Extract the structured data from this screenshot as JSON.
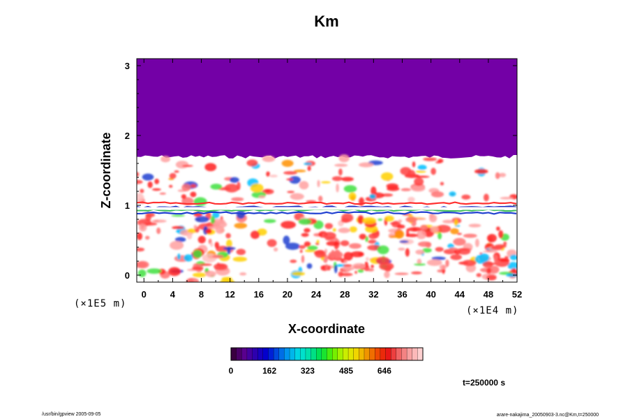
{
  "chart_data": {
    "type": "heatmap",
    "title": "Km",
    "xlabel": "X-coordinate",
    "ylabel": "Z-coordinate",
    "x_unit": "(×1E4 m)",
    "y_unit": "(×1E5 m)",
    "xlim": [
      -1,
      52
    ],
    "ylim": [
      -0.1,
      3.1
    ],
    "x_ticks": [
      0,
      4,
      8,
      12,
      16,
      20,
      24,
      28,
      32,
      36,
      40,
      44,
      48,
      52
    ],
    "y_ticks": [
      0,
      1,
      2,
      3
    ],
    "colorbar": {
      "range": [
        0,
        808
      ],
      "ticks": [
        0,
        162,
        323,
        485,
        646
      ],
      "colors": [
        "#3a0040",
        "#5a0090",
        "#2a00b0",
        "#0000d0",
        "#0050e0",
        "#00a0f0",
        "#00e0e0",
        "#00e0a0",
        "#00e040",
        "#60f000",
        "#c0f000",
        "#f0e000",
        "#f0a000",
        "#f05000",
        "#e81010",
        "#f06060",
        "#f8a0a0",
        "#ffd0d0"
      ]
    },
    "top_value_color": "#7300a6",
    "transition_height": 1.72,
    "annotation_time": "t=250000 s"
  },
  "footer": {
    "left": "/usr/bin/gpview 2005-09-05",
    "right": "arare-nakajima_20050903-3.nc@Km,t=250000"
  }
}
